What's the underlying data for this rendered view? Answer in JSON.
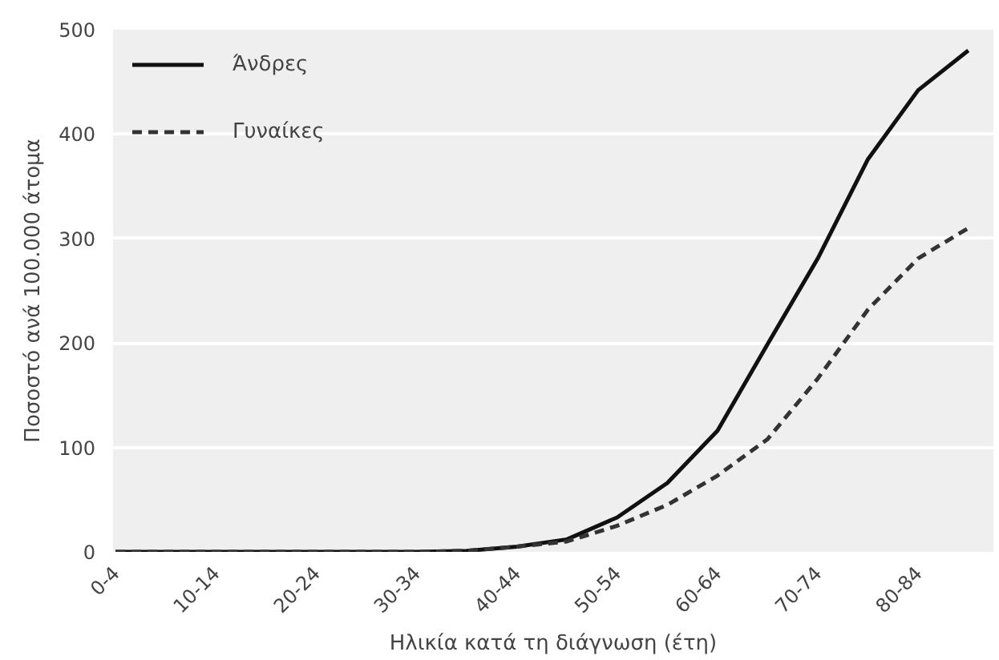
{
  "chart_data": {
    "type": "line",
    "xlabel": "Ηλικία κατά τη διάγνωση (έτη)",
    "ylabel": "Ποσοστό ανά 100.000 άτομα",
    "categories": [
      "0-4",
      null,
      "10-14",
      null,
      "20-24",
      null,
      "30-34",
      null,
      "40-44",
      null,
      "50-54",
      null,
      "60-64",
      null,
      "70-74",
      null,
      "80-84",
      null
    ],
    "series": [
      {
        "name": "Άνδρες",
        "color": "#111111",
        "line_style": "solid",
        "values": [
          0,
          0,
          0,
          0,
          0,
          0,
          0,
          1,
          5,
          12,
          33,
          66,
          116,
          199,
          281,
          376,
          442,
          480
        ]
      },
      {
        "name": "Γυναίκες",
        "color": "#333333",
        "line_style": "dashed",
        "values": [
          0,
          0,
          0,
          0,
          0,
          0,
          0,
          1,
          5,
          10,
          25,
          45,
          73,
          108,
          166,
          232,
          281,
          310
        ]
      }
    ],
    "ylim": [
      0,
      500
    ],
    "yticks": [
      0,
      100,
      200,
      300,
      400,
      500
    ],
    "grid": "y",
    "legend": "top left"
  }
}
